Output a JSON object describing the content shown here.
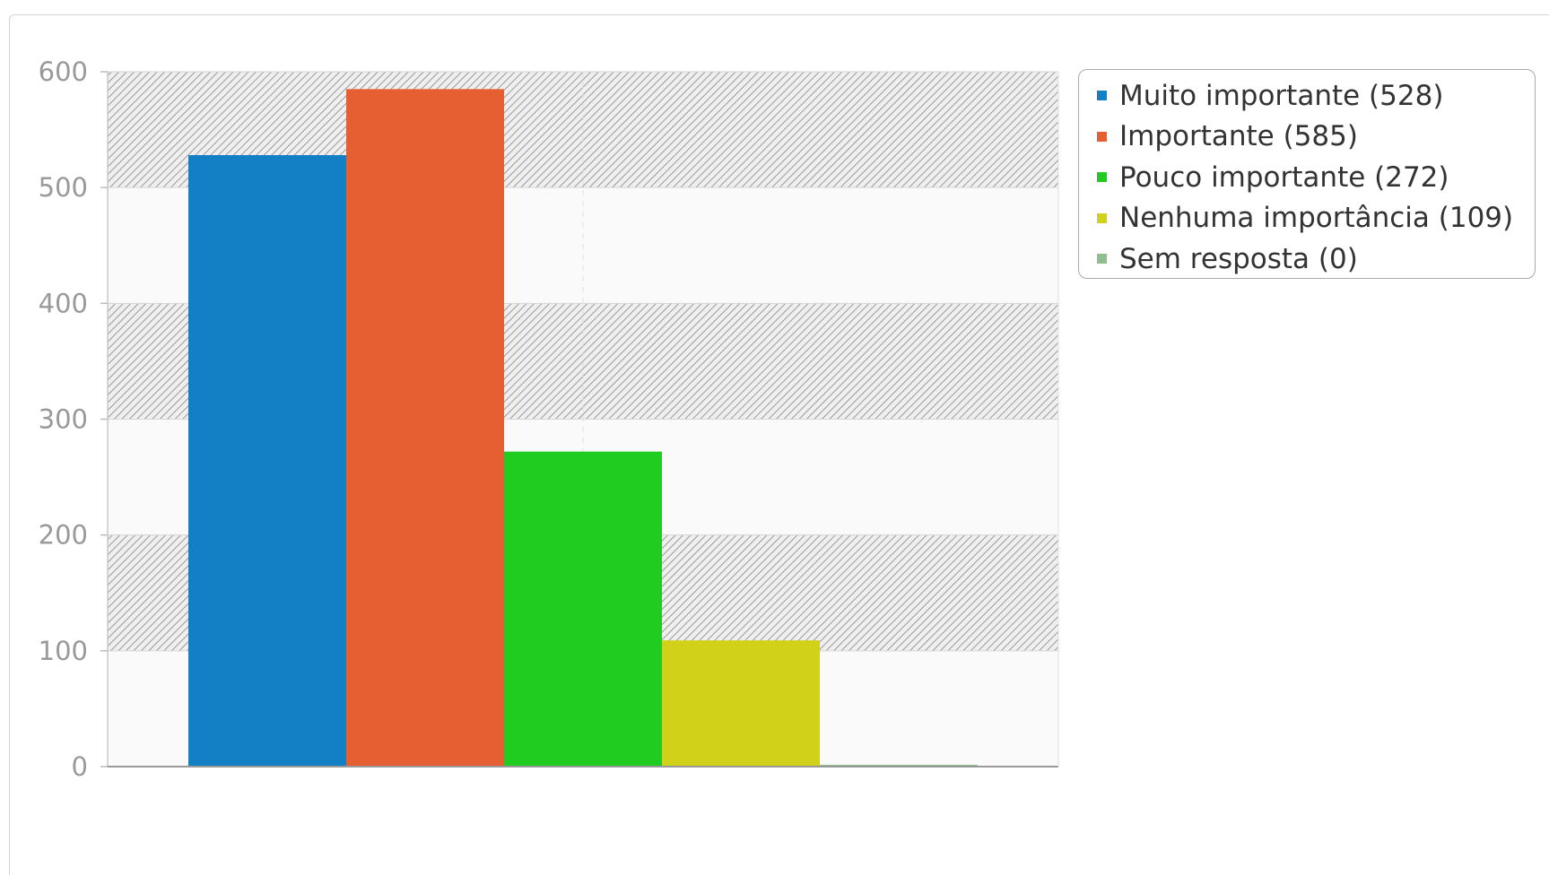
{
  "chart_data": {
    "type": "bar",
    "title": "",
    "xlabel": "",
    "ylabel": "",
    "ylim": [
      0,
      600
    ],
    "yticks": [
      0,
      100,
      200,
      300,
      400,
      500,
      600
    ],
    "grid": true,
    "legend_position": "top-right",
    "series": [
      {
        "name": "Muito importante (528)",
        "value": 528,
        "color": "#1380c5"
      },
      {
        "name": "Importante (585)",
        "value": 585,
        "color": "#e65f33"
      },
      {
        "name": "Pouco importante (272)",
        "value": 272,
        "color": "#20cc20"
      },
      {
        "name": "Nenhuma importância (109)",
        "value": 109,
        "color": "#d1d119"
      },
      {
        "name": "Sem resposta (0)",
        "value": 0,
        "color": "#8fbf8f"
      }
    ]
  }
}
